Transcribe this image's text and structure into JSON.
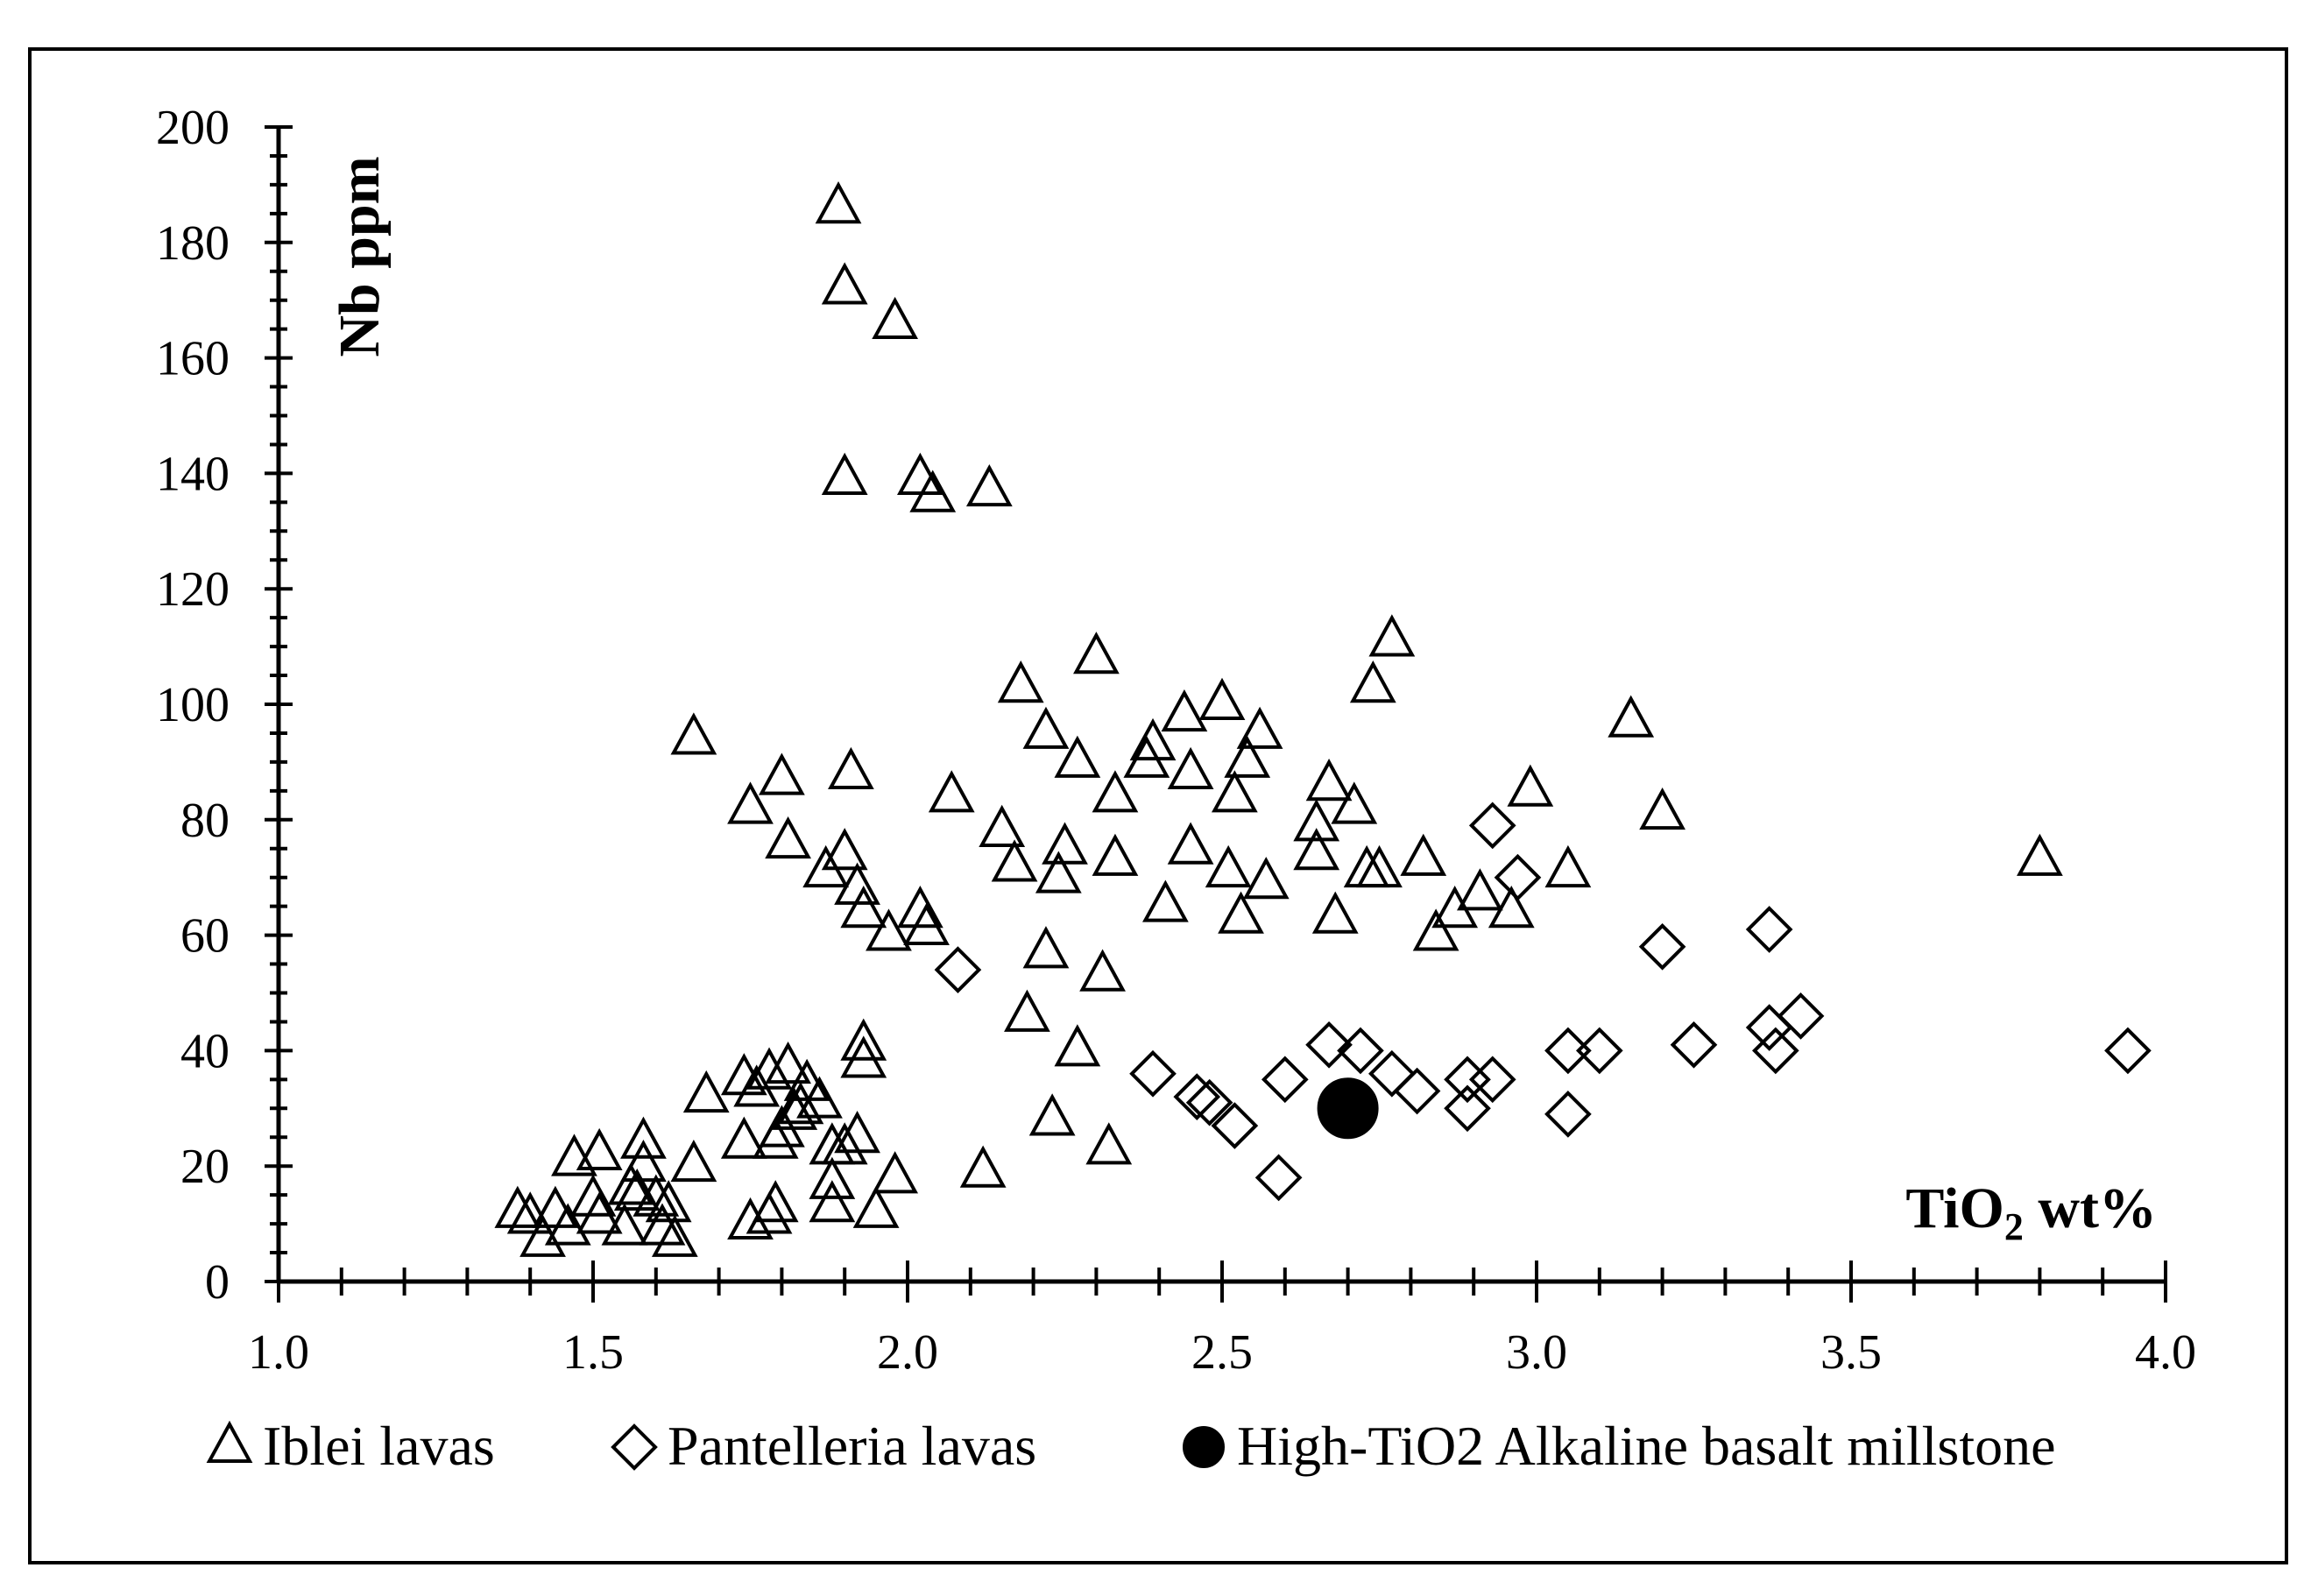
{
  "chart_data": {
    "type": "scatter",
    "title": "",
    "xlabel": "TiO2 wt%",
    "ylabel": "Nb ppm",
    "xlim": [
      1.0,
      4.0
    ],
    "ylim": [
      0,
      200
    ],
    "x_ticks": [
      "1.0",
      "1.5",
      "2.0",
      "2.5",
      "3.0",
      "3.5",
      "4.0"
    ],
    "y_ticks": [
      "0",
      "20",
      "40",
      "60",
      "80",
      "100",
      "120",
      "140",
      "160",
      "180",
      "200"
    ],
    "grid": false,
    "legend_position": "bottom",
    "series": [
      {
        "name": "Iblei lavas",
        "marker": "triangle",
        "points": [
          [
            1.89,
            186
          ],
          [
            1.9,
            172
          ],
          [
            1.98,
            166
          ],
          [
            1.9,
            139
          ],
          [
            2.02,
            139
          ],
          [
            2.04,
            136
          ],
          [
            2.13,
            137
          ],
          [
            1.66,
            94
          ],
          [
            2.3,
            108
          ],
          [
            2.77,
            111
          ],
          [
            2.74,
            103
          ],
          [
            2.18,
            103
          ],
          [
            2.5,
            100
          ],
          [
            2.44,
            98
          ],
          [
            2.22,
            95
          ],
          [
            2.56,
            95
          ],
          [
            2.39,
            93
          ],
          [
            2.38,
            90
          ],
          [
            2.27,
            90
          ],
          [
            2.54,
            90
          ],
          [
            1.8,
            87
          ],
          [
            1.91,
            88
          ],
          [
            2.45,
            88
          ],
          [
            2.67,
            86
          ],
          [
            2.99,
            85
          ],
          [
            3.15,
            97
          ],
          [
            2.07,
            84
          ],
          [
            2.33,
            84
          ],
          [
            2.52,
            84
          ],
          [
            1.75,
            82
          ],
          [
            2.71,
            82
          ],
          [
            3.2,
            81
          ],
          [
            2.65,
            79
          ],
          [
            2.15,
            78
          ],
          [
            1.81,
            76
          ],
          [
            2.25,
            75
          ],
          [
            2.45,
            75
          ],
          [
            1.9,
            74
          ],
          [
            2.65,
            74
          ],
          [
            2.33,
            73
          ],
          [
            2.82,
            73
          ],
          [
            3.8,
            73
          ],
          [
            2.17,
            72
          ],
          [
            2.51,
            71
          ],
          [
            2.73,
            71
          ],
          [
            2.75,
            71
          ],
          [
            3.05,
            71
          ],
          [
            1.87,
            71
          ],
          [
            2.24,
            70
          ],
          [
            2.57,
            69
          ],
          [
            1.92,
            68
          ],
          [
            2.91,
            67
          ],
          [
            2.41,
            65
          ],
          [
            2.87,
            64
          ],
          [
            2.96,
            64
          ],
          [
            1.93,
            64
          ],
          [
            2.02,
            64
          ],
          [
            2.53,
            63
          ],
          [
            2.68,
            63
          ],
          [
            2.03,
            61
          ],
          [
            1.97,
            60
          ],
          [
            2.84,
            60
          ],
          [
            2.22,
            57
          ],
          [
            2.31,
            53
          ],
          [
            2.19,
            46
          ],
          [
            1.93,
            41
          ],
          [
            1.93,
            38
          ],
          [
            2.27,
            40
          ],
          [
            1.68,
            32
          ],
          [
            1.74,
            35
          ],
          [
            1.78,
            36
          ],
          [
            1.81,
            37
          ],
          [
            1.76,
            33
          ],
          [
            1.84,
            34
          ],
          [
            1.86,
            31
          ],
          [
            1.82,
            29
          ],
          [
            1.83,
            30
          ],
          [
            1.8,
            26
          ],
          [
            2.23,
            28
          ],
          [
            1.74,
            24
          ],
          [
            1.79,
            24
          ],
          [
            1.88,
            23
          ],
          [
            1.9,
            23
          ],
          [
            1.92,
            25
          ],
          [
            2.32,
            23
          ],
          [
            1.58,
            24
          ],
          [
            1.51,
            22
          ],
          [
            1.47,
            21
          ],
          [
            1.66,
            20
          ],
          [
            1.58,
            20
          ],
          [
            2.12,
            19
          ],
          [
            1.98,
            18
          ],
          [
            1.88,
            17
          ],
          [
            1.5,
            14
          ],
          [
            1.57,
            15
          ],
          [
            1.6,
            14
          ],
          [
            1.62,
            13
          ],
          [
            1.56,
            16
          ],
          [
            1.88,
            13
          ],
          [
            1.79,
            13
          ],
          [
            1.95,
            12
          ],
          [
            1.78,
            11
          ],
          [
            1.38,
            12
          ],
          [
            1.4,
            11
          ],
          [
            1.44,
            12
          ],
          [
            1.51,
            11
          ],
          [
            1.75,
            10
          ],
          [
            1.46,
            9
          ],
          [
            1.55,
            9
          ],
          [
            1.61,
            9
          ],
          [
            1.42,
            7
          ],
          [
            1.63,
            7
          ]
        ]
      },
      {
        "name": "Pantelleria lavas",
        "marker": "diamond",
        "points": [
          [
            2.93,
            79
          ],
          [
            2.97,
            70
          ],
          [
            3.37,
            61
          ],
          [
            3.2,
            58
          ],
          [
            2.08,
            54
          ],
          [
            3.42,
            46
          ],
          [
            3.37,
            44
          ],
          [
            3.25,
            41
          ],
          [
            3.1,
            40
          ],
          [
            3.05,
            40
          ],
          [
            3.38,
            40
          ],
          [
            3.94,
            40
          ],
          [
            2.67,
            41
          ],
          [
            2.72,
            40
          ],
          [
            2.39,
            36
          ],
          [
            2.6,
            35
          ],
          [
            2.77,
            36
          ],
          [
            2.89,
            35
          ],
          [
            2.93,
            35
          ],
          [
            2.81,
            33
          ],
          [
            2.46,
            32
          ],
          [
            2.48,
            31
          ],
          [
            2.89,
            30
          ],
          [
            3.05,
            29
          ],
          [
            2.52,
            27
          ],
          [
            2.59,
            18
          ]
        ]
      },
      {
        "name": "High-TiO2 Alkaline basalt millstone",
        "marker": "circle",
        "points": [
          [
            2.7,
            30
          ]
        ]
      }
    ]
  }
}
